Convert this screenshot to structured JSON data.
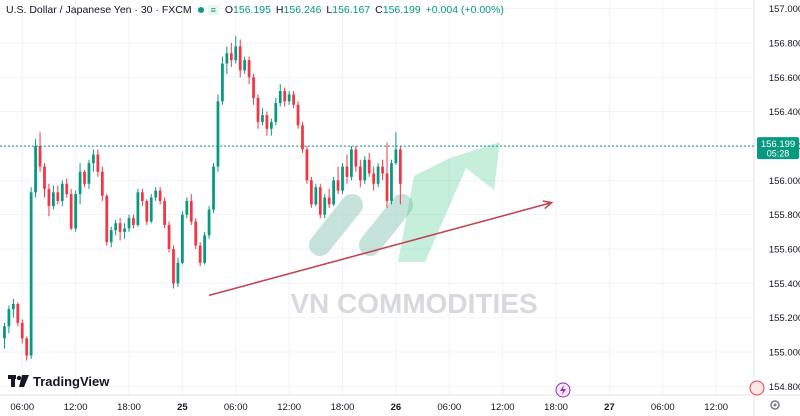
{
  "header": {
    "title": "U.S. Dollar / Japanese Yen · 30 · FXCM",
    "open_label": "O",
    "open": "156.195",
    "high_label": "H",
    "high": "156.246",
    "low_label": "L",
    "low": "156.167",
    "close_label": "C",
    "close": "156.199",
    "change": "+0.004 (+0.00%)"
  },
  "price_tag": {
    "price": "156.199",
    "countdown": "05:28"
  },
  "watermark": "VN COMMODITIES",
  "brand": "TradingView",
  "colors": {
    "up": "#089981",
    "down": "#f23645",
    "trendline": "#c2454f",
    "last_price": "#089981",
    "watermark": "#9fd1c2"
  },
  "chart_data": {
    "type": "candlestick",
    "symbol": "USDJPY",
    "interval": "30",
    "source": "FXCM",
    "ylim": [
      154.75,
      157.05
    ],
    "y_ticks": [
      157.0,
      156.8,
      156.6,
      156.4,
      156.2,
      156.0,
      155.8,
      155.6,
      155.4,
      155.2,
      155.0,
      154.8
    ],
    "x_ticks": [
      {
        "label": "06:00",
        "i": 4
      },
      {
        "label": "12:00",
        "i": 16
      },
      {
        "label": "18:00",
        "i": 28
      },
      {
        "label": "25",
        "i": 40
      },
      {
        "label": "06:00",
        "i": 52
      },
      {
        "label": "12:00",
        "i": 64
      },
      {
        "label": "18:00",
        "i": 76
      },
      {
        "label": "26",
        "i": 88
      },
      {
        "label": "06:00",
        "i": 100
      },
      {
        "label": "12:00",
        "i": 112
      },
      {
        "label": "18:00",
        "i": 124
      },
      {
        "label": "27",
        "i": 136
      },
      {
        "label": "06:00",
        "i": 148
      },
      {
        "label": "12:00",
        "i": 160
      }
    ],
    "x_range": [
      -1,
      168.5
    ],
    "last_price": 156.199,
    "trendline": [
      {
        "i": 46,
        "price": 155.33
      },
      {
        "i": 123,
        "price": 155.87
      }
    ],
    "candles_ohlc": [
      [
        155.08,
        155.17,
        155.02,
        155.15
      ],
      [
        155.15,
        155.27,
        155.11,
        155.25
      ],
      [
        155.25,
        155.31,
        155.2,
        155.28
      ],
      [
        155.28,
        155.29,
        155.15,
        155.17
      ],
      [
        155.17,
        155.19,
        155.05,
        155.08
      ],
      [
        155.08,
        155.09,
        154.95,
        154.98
      ],
      [
        154.98,
        155.96,
        154.96,
        155.93
      ],
      [
        155.93,
        156.24,
        155.9,
        156.2
      ],
      [
        156.2,
        156.28,
        156.05,
        156.08
      ],
      [
        156.08,
        156.1,
        155.9,
        155.95
      ],
      [
        155.95,
        155.98,
        155.79,
        155.85
      ],
      [
        155.85,
        155.97,
        155.83,
        155.93
      ],
      [
        155.93,
        155.97,
        155.86,
        155.88
      ],
      [
        155.88,
        156.0,
        155.85,
        155.98
      ],
      [
        155.98,
        156.01,
        155.9,
        155.92
      ],
      [
        155.92,
        155.95,
        155.71,
        155.72
      ],
      [
        155.72,
        155.94,
        155.7,
        155.92
      ],
      [
        155.92,
        156.1,
        155.86,
        156.05
      ],
      [
        156.05,
        156.06,
        155.96,
        155.98
      ],
      [
        155.98,
        156.12,
        155.95,
        156.1
      ],
      [
        156.1,
        156.18,
        156.05,
        156.15
      ],
      [
        156.15,
        156.18,
        156.02,
        156.05
      ],
      [
        156.05,
        156.08,
        155.88,
        155.91
      ],
      [
        155.91,
        155.92,
        155.62,
        155.64
      ],
      [
        155.64,
        155.73,
        155.61,
        155.71
      ],
      [
        155.71,
        155.77,
        155.68,
        155.75
      ],
      [
        155.75,
        155.78,
        155.65,
        155.7
      ],
      [
        155.7,
        155.75,
        155.66,
        155.72
      ],
      [
        155.72,
        155.8,
        155.7,
        155.78
      ],
      [
        155.78,
        155.8,
        155.72,
        155.74
      ],
      [
        155.74,
        155.95,
        155.73,
        155.93
      ],
      [
        155.93,
        155.95,
        155.85,
        155.88
      ],
      [
        155.88,
        155.89,
        155.74,
        155.76
      ],
      [
        155.76,
        155.92,
        155.75,
        155.9
      ],
      [
        155.9,
        155.96,
        155.88,
        155.94
      ],
      [
        155.94,
        155.96,
        155.86,
        155.88
      ],
      [
        155.88,
        155.9,
        155.72,
        155.74
      ],
      [
        155.74,
        155.76,
        155.58,
        155.6
      ],
      [
        155.6,
        155.62,
        155.37,
        155.4
      ],
      [
        155.4,
        155.55,
        155.38,
        155.52
      ],
      [
        155.52,
        155.82,
        155.51,
        155.8
      ],
      [
        155.8,
        155.9,
        155.78,
        155.88
      ],
      [
        155.88,
        155.92,
        155.74,
        155.76
      ],
      [
        155.76,
        155.78,
        155.6,
        155.62
      ],
      [
        155.62,
        155.64,
        155.5,
        155.52
      ],
      [
        155.52,
        155.7,
        155.51,
        155.68
      ],
      [
        155.68,
        155.85,
        155.66,
        155.83
      ],
      [
        155.83,
        156.1,
        155.81,
        156.08
      ],
      [
        156.08,
        156.5,
        156.05,
        156.46
      ],
      [
        156.46,
        156.72,
        156.44,
        156.68
      ],
      [
        156.68,
        156.78,
        156.62,
        156.74
      ],
      [
        156.74,
        156.8,
        156.66,
        156.7
      ],
      [
        156.7,
        156.84,
        156.68,
        156.78
      ],
      [
        156.78,
        156.82,
        156.6,
        156.64
      ],
      [
        156.64,
        156.72,
        156.62,
        156.7
      ],
      [
        156.7,
        156.72,
        156.56,
        156.6
      ],
      [
        156.6,
        156.62,
        156.44,
        156.48
      ],
      [
        156.48,
        156.5,
        156.3,
        156.34
      ],
      [
        156.34,
        156.42,
        156.32,
        156.38
      ],
      [
        156.38,
        156.4,
        156.26,
        156.3
      ],
      [
        156.3,
        156.36,
        156.26,
        156.34
      ],
      [
        156.34,
        156.48,
        156.32,
        156.45
      ],
      [
        156.45,
        156.56,
        156.43,
        156.52
      ],
      [
        156.52,
        156.54,
        156.43,
        156.46
      ],
      [
        156.46,
        156.52,
        156.44,
        156.5
      ],
      [
        156.5,
        156.52,
        156.42,
        156.44
      ],
      [
        156.44,
        156.46,
        156.3,
        156.32
      ],
      [
        156.32,
        156.34,
        156.16,
        156.18
      ],
      [
        156.18,
        156.2,
        155.98,
        156.0
      ],
      [
        156.0,
        156.02,
        155.84,
        155.86
      ],
      [
        155.86,
        155.98,
        155.85,
        155.96
      ],
      [
        155.96,
        155.98,
        155.78,
        155.8
      ],
      [
        155.8,
        155.92,
        155.78,
        155.9
      ],
      [
        155.9,
        155.95,
        155.84,
        155.86
      ],
      [
        155.86,
        156.02,
        155.85,
        156.0
      ],
      [
        156.0,
        156.08,
        155.92,
        155.94
      ],
      [
        155.94,
        156.1,
        155.92,
        156.08
      ],
      [
        156.08,
        156.15,
        155.98,
        156.02
      ],
      [
        156.02,
        156.2,
        156.0,
        156.18
      ],
      [
        156.18,
        156.2,
        156.05,
        156.08
      ],
      [
        156.08,
        156.12,
        155.96,
        156.0
      ],
      [
        156.0,
        156.14,
        155.98,
        156.12
      ],
      [
        156.12,
        156.16,
        156.02,
        156.04
      ],
      [
        156.04,
        156.08,
        155.94,
        155.98
      ],
      [
        155.98,
        156.1,
        155.96,
        156.08
      ],
      [
        156.08,
        156.12,
        156.0,
        156.04
      ],
      [
        156.04,
        156.22,
        155.84,
        155.88
      ],
      [
        155.88,
        156.12,
        155.86,
        156.1
      ],
      [
        156.1,
        156.28,
        156.09,
        156.18
      ],
      [
        156.18,
        156.2,
        155.86,
        155.98
      ]
    ]
  }
}
